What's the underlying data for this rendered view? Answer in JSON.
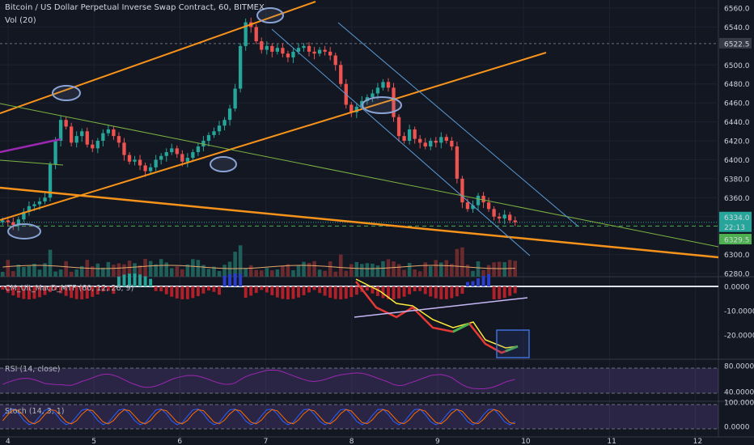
{
  "header": {
    "title": "Bitcoin / US Dollar Perpetual Inverse Swap Contract, 60, BITMEX",
    "volume_label": "Vol (20)"
  },
  "panes": {
    "macd_label": "CM_Ult_MacD_MTF (60, 12, 26, 9)",
    "rsi_label": "RSI (14, close)",
    "stoch_label": "Stoch (14, 3, 1)"
  },
  "price_axis": {
    "ticks": [
      "6560.0",
      "6540.0",
      "6522.5",
      "6500.0",
      "6480.0",
      "6460.0",
      "6440.0",
      "6420.0",
      "6400.0",
      "6380.0",
      "6360.0",
      "6340.0",
      "6334.0",
      "22:13",
      "6329.5",
      "6300.0",
      "6280.0"
    ],
    "current_price": "6334.0",
    "countdown": "22:13",
    "level_green": "6329.5"
  },
  "macd_axis": {
    "ticks": [
      "0.0000",
      "-10.0000",
      "-20.0000"
    ]
  },
  "rsi_axis": {
    "ticks": [
      "80.0000",
      "40.0000"
    ]
  },
  "stoch_axis": {
    "ticks": [
      "100.0000",
      "0.0000"
    ]
  },
  "time_axis": {
    "ticks": [
      "4",
      "5",
      "6",
      "7",
      "8",
      "9",
      "10",
      "11",
      "12"
    ]
  },
  "colors": {
    "background": "#131722",
    "up": "#26a69a",
    "down": "#ef5350",
    "trendline_orange": "#f7931a",
    "channel_blue": "#5b9bd5",
    "trendline_green": "#7cb342",
    "purple": "#9c27b0"
  },
  "chart_data": {
    "type": "candlestick",
    "title": "Bitcoin / US Dollar Perpetual Inverse Swap Contract, 60, BITMEX",
    "y_range": [
      6280,
      6565
    ],
    "x_ticks": [
      "4",
      "5",
      "6",
      "7",
      "8",
      "9",
      "10",
      "11",
      "12"
    ],
    "last_price": 6334.0,
    "series": [
      {
        "name": "price",
        "values": [
          6336,
          6334,
          6331,
          6337,
          6345,
          6351,
          6353,
          6356,
          6360,
          6395,
          6420,
          6442,
          6435,
          6418,
          6425,
          6430,
          6416,
          6412,
          6420,
          6428,
          6432,
          6425,
          6418,
          6405,
          6398,
          6400,
          6394,
          6388,
          6392,
          6400,
          6404,
          6408,
          6412,
          6406,
          6398,
          6402,
          6408,
          6414,
          6420,
          6426,
          6430,
          6436,
          6442,
          6454,
          6475,
          6520,
          6545,
          6540,
          6525,
          6516,
          6520,
          6514,
          6518,
          6512,
          6508,
          6514,
          6518,
          6520,
          6514,
          6512,
          6516,
          6514,
          6510,
          6500,
          6480,
          6458,
          6450,
          6456,
          6462,
          6466,
          6470,
          6476,
          6482,
          6476,
          6445,
          6425,
          6420,
          6432,
          6422,
          6418,
          6414,
          6420,
          6418,
          6424,
          6420,
          6414,
          6380,
          6355,
          6348,
          6352,
          6362,
          6355,
          6348,
          6340,
          6338,
          6342,
          6336,
          6334
        ]
      }
    ]
  }
}
